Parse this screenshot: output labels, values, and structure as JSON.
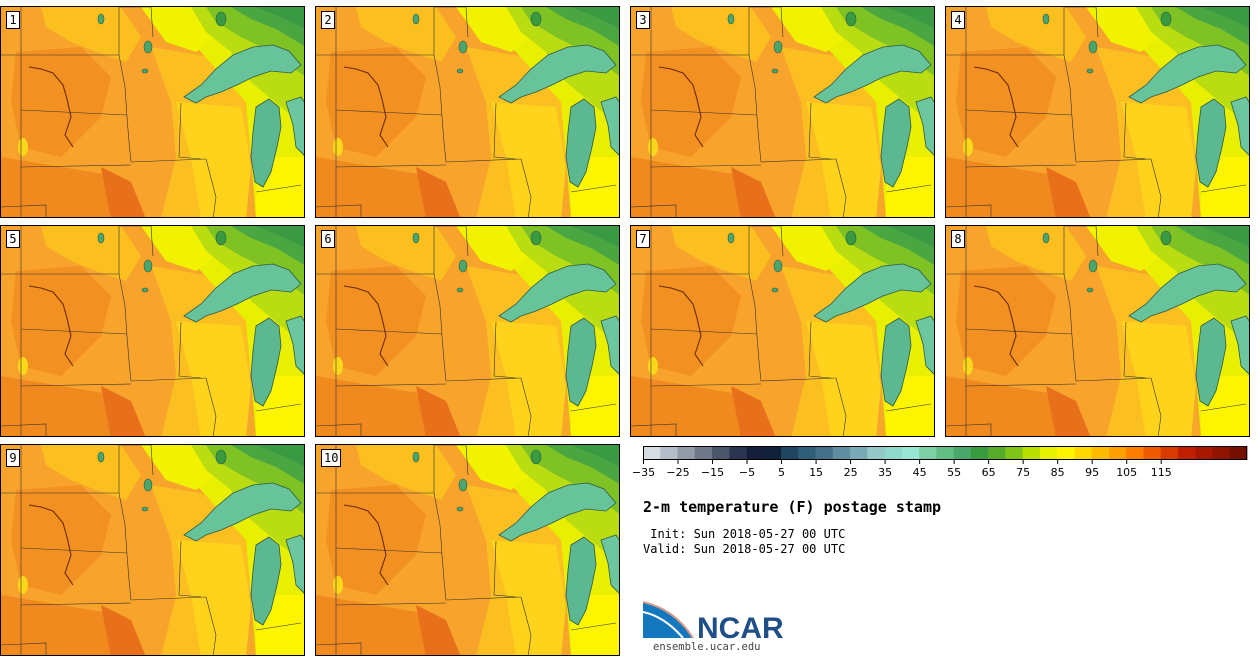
{
  "panels": [
    {
      "label": "1"
    },
    {
      "label": "2"
    },
    {
      "label": "3"
    },
    {
      "label": "4"
    },
    {
      "label": "5"
    },
    {
      "label": "6"
    },
    {
      "label": "7"
    },
    {
      "label": "8"
    },
    {
      "label": "9"
    },
    {
      "label": "10"
    }
  ],
  "colorbar": {
    "colors": [
      "#d6dde3",
      "#b5bec8",
      "#929ca8",
      "#6e7888",
      "#4c566a",
      "#2b3550",
      "#141e38",
      "#102038",
      "#1f4560",
      "#2f5e78",
      "#456f86",
      "#5f8ea0",
      "#7aaab5",
      "#96c8c8",
      "#8ed8cc",
      "#9ae6d4",
      "#7ecfa5",
      "#63be86",
      "#4aa66c",
      "#3a9a40",
      "#57ab2c",
      "#80c41a",
      "#b7e000",
      "#e6f200",
      "#fff500",
      "#ffd800",
      "#ffbb00",
      "#ff9f00",
      "#ff7e00",
      "#f05a00",
      "#d83a00",
      "#c02000",
      "#a81800",
      "#8f1400",
      "#731000"
    ],
    "tick_labels": [
      "−35",
      "−25",
      "−15",
      "−5",
      "5",
      "15",
      "25",
      "35",
      "45",
      "55",
      "65",
      "75",
      "85",
      "95",
      "105",
      "115"
    ]
  },
  "title": "2-m temperature (F) postage stamp",
  "init_line": " Init: Sun 2018-05-27 00 UTC",
  "valid_line": "Valid: Sun 2018-05-27 00 UTC",
  "logo": {
    "text": "NCAR",
    "url": "ensemble.ucar.edu"
  }
}
